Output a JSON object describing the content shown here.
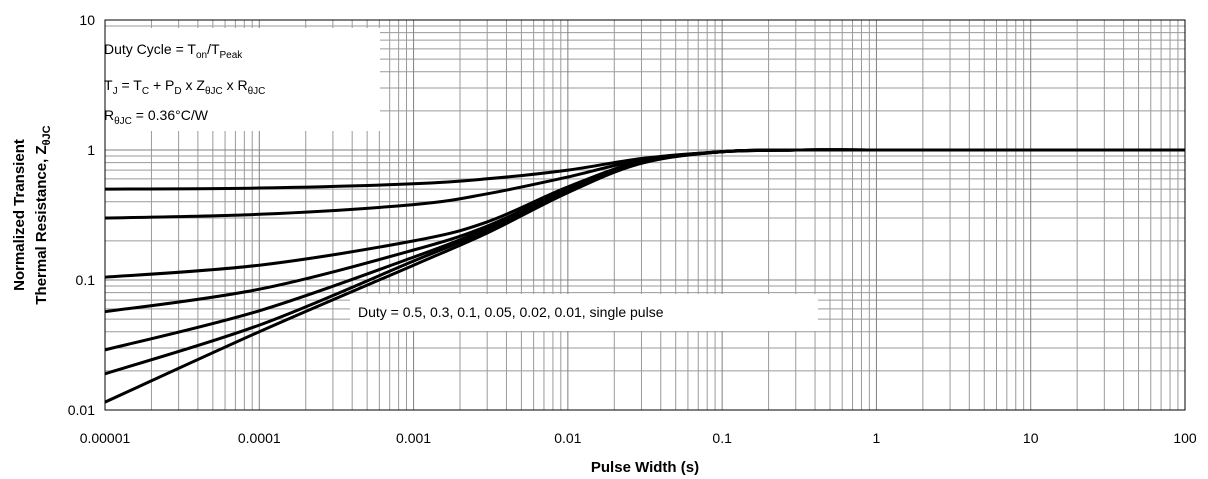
{
  "chart_data": {
    "type": "line",
    "xscale": "log",
    "yscale": "log",
    "xlim": [
      1e-05,
      100
    ],
    "ylim": [
      0.01,
      10
    ],
    "grid": true,
    "xlabel": "Pulse Width (s)",
    "ylabel_line1": "Normalized Transient",
    "ylabel_line2": "Thermal Resistance, Z",
    "ylabel_sub": "θJC",
    "xticks": [
      "0.00001",
      "0.0001",
      "0.001",
      "0.01",
      "0.1",
      "1",
      "10",
      "100"
    ],
    "yticks": [
      "0.01",
      "0.1",
      "1",
      "10"
    ],
    "line_color": "#000000",
    "series": [
      {
        "x": [
          1e-05,
          0.0001,
          0.001,
          0.003,
          0.01,
          0.03,
          0.1,
          0.3,
          1,
          10,
          100
        ],
        "y": [
          0.5,
          0.51,
          0.55,
          0.6,
          0.7,
          0.86,
          0.97,
          1,
          1,
          1,
          1
        ]
      },
      {
        "x": [
          1e-05,
          0.0001,
          0.001,
          0.003,
          0.01,
          0.03,
          0.1,
          0.3,
          1,
          10,
          100
        ],
        "y": [
          0.3,
          0.32,
          0.38,
          0.46,
          0.62,
          0.84,
          0.97,
          1,
          1,
          1,
          1
        ]
      },
      {
        "x": [
          1e-05,
          0.0001,
          0.001,
          0.003,
          0.01,
          0.03,
          0.1,
          0.3,
          1,
          10,
          100
        ],
        "y": [
          0.105,
          0.13,
          0.2,
          0.28,
          0.52,
          0.82,
          0.97,
          1,
          1,
          1,
          1
        ]
      },
      {
        "x": [
          1e-05,
          0.0001,
          0.001,
          0.003,
          0.01,
          0.03,
          0.1,
          0.3,
          1,
          10,
          100
        ],
        "y": [
          0.057,
          0.085,
          0.17,
          0.26,
          0.5,
          0.81,
          0.97,
          1,
          1,
          1,
          1
        ]
      },
      {
        "x": [
          1e-05,
          0.0001,
          0.001,
          0.003,
          0.01,
          0.03,
          0.1,
          0.3,
          1,
          10,
          100
        ],
        "y": [
          0.029,
          0.058,
          0.15,
          0.25,
          0.49,
          0.8,
          0.97,
          1,
          1,
          1,
          1
        ]
      },
      {
        "x": [
          1e-05,
          0.0001,
          0.001,
          0.003,
          0.01,
          0.03,
          0.1,
          0.3,
          1,
          10,
          100
        ],
        "y": [
          0.019,
          0.045,
          0.14,
          0.24,
          0.48,
          0.8,
          0.97,
          1,
          1,
          1,
          1
        ]
      },
      {
        "x": [
          1e-05,
          0.0001,
          0.001,
          0.003,
          0.01,
          0.03,
          0.1,
          0.3,
          1,
          10,
          100
        ],
        "y": [
          0.0115,
          0.04,
          0.13,
          0.23,
          0.47,
          0.79,
          0.97,
          1,
          1,
          1,
          1
        ]
      }
    ],
    "annotations": {
      "duty_cycle": {
        "prefix": "Duty Cycle = T",
        "sub1": "on",
        "mid": "/T",
        "sub2": "Peak"
      },
      "tj_formula": {
        "t": "T",
        "s_j": "J",
        "eq1": " = T",
        "s_c": "C",
        "plus": " + P",
        "s_d": "D",
        "x1": " x Z",
        "s_z": "θJC",
        "x2": " x R",
        "s_r": "θJC"
      },
      "rthjc": {
        "r": "R",
        "s_r": "θJC",
        "rest": " = 0.36°C/W"
      },
      "duty_list": "Duty = 0.5, 0.3, 0.1, 0.05, 0.02, 0.01, single pulse"
    }
  }
}
